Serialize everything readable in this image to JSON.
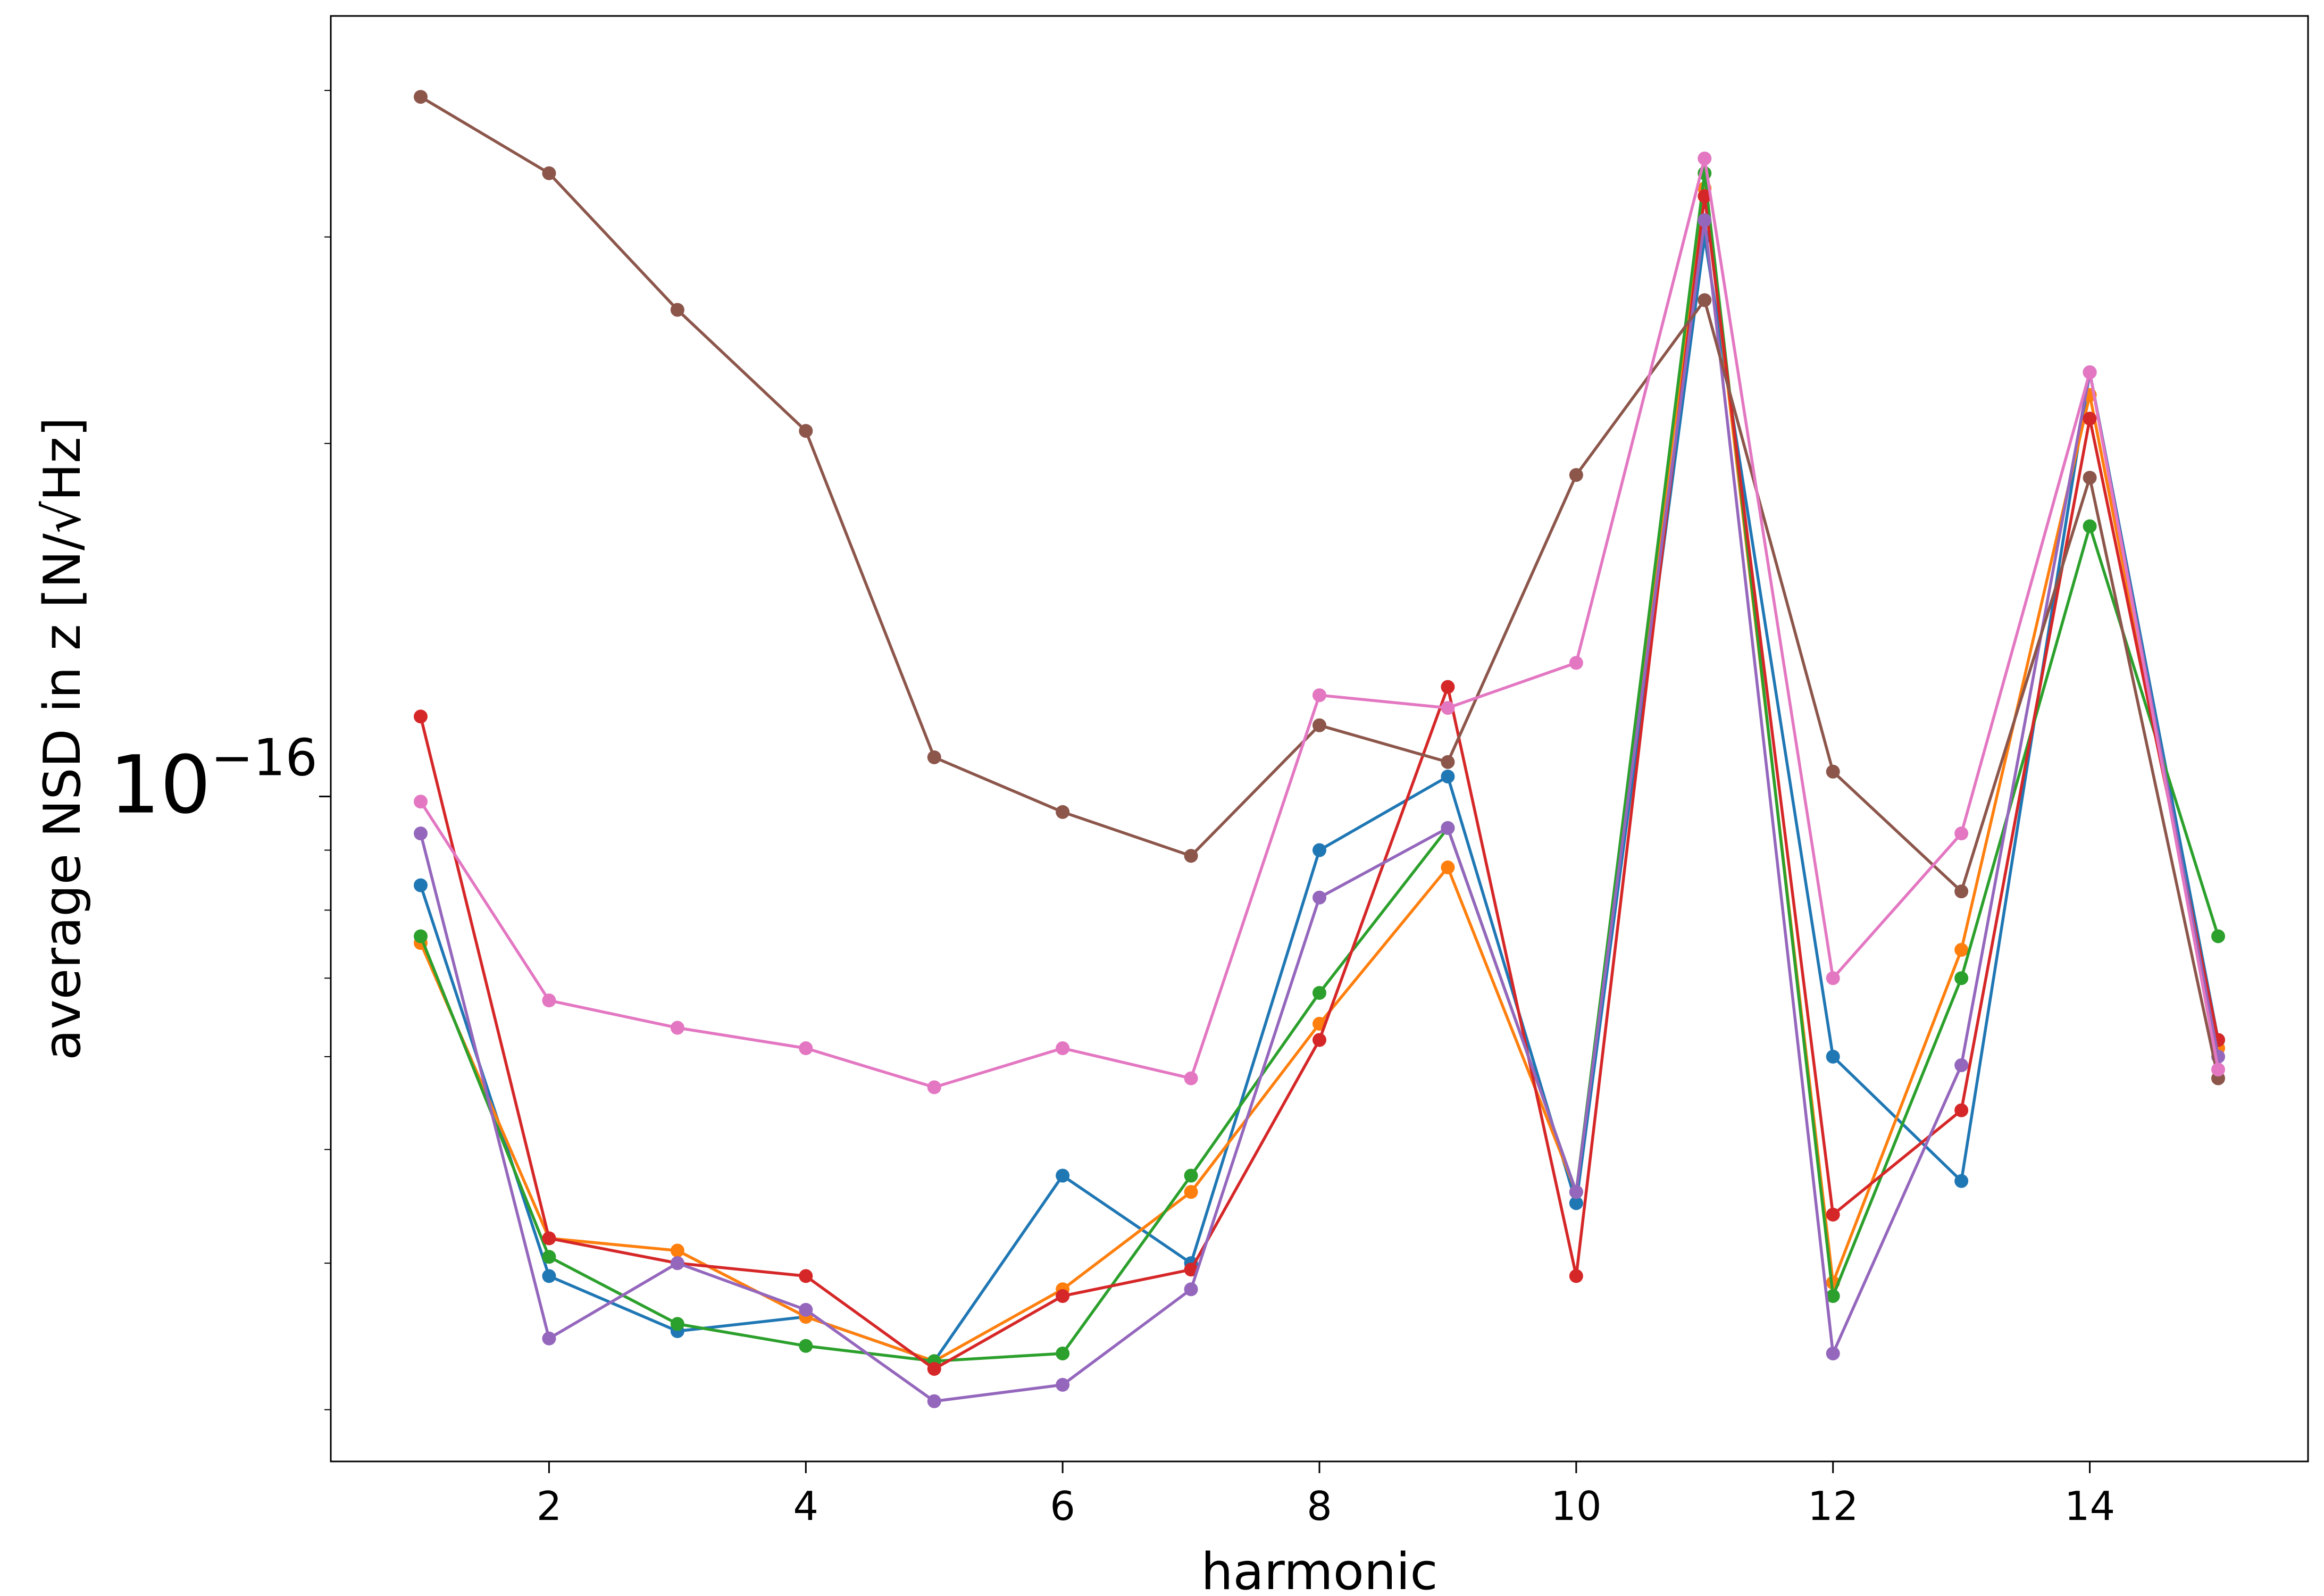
{
  "chart_data": {
    "type": "line",
    "xlabel": "harmonic",
    "ylabel": "average NSD in z [N/√Hz]",
    "y_scale": "log",
    "grid": false,
    "legend": "none",
    "xlim": [
      0.3,
      15.7
    ],
    "ylim": [
      2.71e-17,
      4.63e-16
    ],
    "x_ticks": [
      2,
      4,
      6,
      8,
      10,
      12,
      14
    ],
    "y_ticks": [
      1e-16
    ],
    "y_tick_labels": {
      "base": "10",
      "exponent": "−16"
    },
    "x": [
      1,
      2,
      3,
      4,
      5,
      6,
      7,
      8,
      9,
      10,
      11,
      12,
      13,
      14,
      15
    ],
    "series": [
      {
        "color": "#1f77b4",
        "values": [
          8.4e-17,
          3.9e-17,
          3.5e-17,
          3.6e-17,
          3.3e-17,
          4.75e-17,
          4e-17,
          9e-17,
          1.04e-16,
          4.5e-17,
          3e-16,
          6e-17,
          4.7e-17,
          2.3e-16,
          6.2e-17
        ]
      },
      {
        "color": "#ff7f0e",
        "values": [
          7.5e-17,
          4.2e-17,
          4.1e-17,
          3.6e-17,
          3.3e-17,
          3.8e-17,
          4.6e-17,
          6.4e-17,
          8.7e-17,
          4.6e-17,
          3.3e-16,
          3.85e-17,
          7.4e-17,
          2.2e-16,
          6.1e-17
        ]
      },
      {
        "color": "#2ca02c",
        "values": [
          7.6e-17,
          4.05e-17,
          3.55e-17,
          3.4e-17,
          3.3e-17,
          3.35e-17,
          4.75e-17,
          6.8e-17,
          9.4e-17,
          4.6e-17,
          3.4e-16,
          3.75e-17,
          7e-17,
          1.7e-16,
          7.6e-17
        ]
      },
      {
        "color": "#d62728",
        "values": [
          1.17e-16,
          4.2e-17,
          4e-17,
          3.9e-17,
          3.25e-17,
          3.75e-17,
          3.95e-17,
          6.2e-17,
          1.24e-16,
          3.9e-17,
          3.25e-16,
          4.4e-17,
          5.4e-17,
          2.1e-16,
          6.2e-17
        ]
      },
      {
        "color": "#9467bd",
        "values": [
          9.3e-17,
          3.45e-17,
          4e-17,
          3.65e-17,
          3.05e-17,
          3.15e-17,
          3.8e-17,
          8.2e-17,
          9.4e-17,
          4.6e-17,
          3.1e-16,
          3.35e-17,
          5.9e-17,
          2.3e-16,
          6e-17
        ]
      },
      {
        "color": "#8c564b",
        "values": [
          3.95e-16,
          3.4e-16,
          2.6e-16,
          2.05e-16,
          1.08e-16,
          9.7e-17,
          8.9e-17,
          1.15e-16,
          1.07e-16,
          1.88e-16,
          2.65e-16,
          1.05e-16,
          8.3e-17,
          1.87e-16,
          5.75e-17
        ]
      },
      {
        "color": "#e377c2",
        "values": [
          9.9e-17,
          6.7e-17,
          6.35e-17,
          6.1e-17,
          5.65e-17,
          6.1e-17,
          5.75e-17,
          1.22e-16,
          1.19e-16,
          1.3e-16,
          3.5e-16,
          7e-17,
          9.3e-17,
          2.3e-16,
          5.85e-17
        ]
      }
    ]
  }
}
